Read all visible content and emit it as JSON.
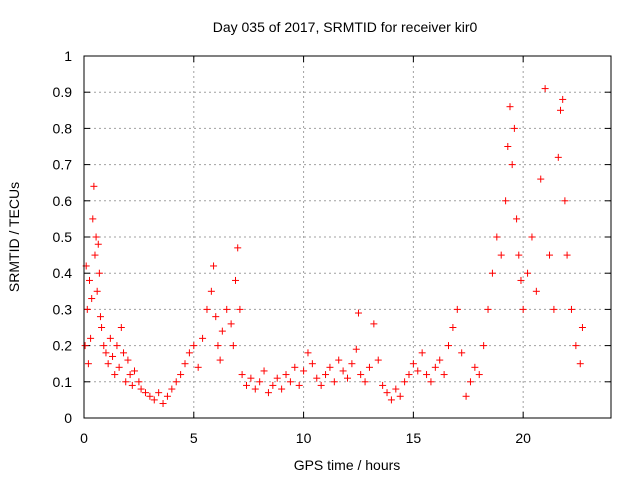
{
  "chart_data": {
    "type": "scatter",
    "title": "Day 035 of 2017, SRMTID for receiver kir0",
    "xlabel": "GPS time / hours",
    "ylabel": "SRMTID / TECUs",
    "xlim": [
      0,
      24
    ],
    "ylim": [
      0,
      1
    ],
    "xticks": [
      0,
      5,
      10,
      15,
      20
    ],
    "xtick_labels": [
      "0",
      "5",
      "10",
      "15",
      "20"
    ],
    "yticks": [
      0,
      0.1,
      0.2,
      0.3,
      0.4,
      0.5,
      0.6,
      0.7,
      0.8,
      0.9,
      1
    ],
    "ytick_labels": [
      "0",
      "0.1",
      "0.2",
      "0.3",
      "0.4",
      "0.5",
      "0.6",
      "0.7",
      "0.8",
      "0.9",
      "1"
    ],
    "grid": true,
    "marker": "+",
    "color": "#ff0000",
    "series": [
      {
        "name": "SRMTID",
        "points": [
          [
            0.05,
            0.2
          ],
          [
            0.1,
            0.42
          ],
          [
            0.15,
            0.3
          ],
          [
            0.2,
            0.15
          ],
          [
            0.25,
            0.38
          ],
          [
            0.3,
            0.22
          ],
          [
            0.35,
            0.33
          ],
          [
            0.4,
            0.55
          ],
          [
            0.45,
            0.64
          ],
          [
            0.5,
            0.45
          ],
          [
            0.55,
            0.5
          ],
          [
            0.6,
            0.35
          ],
          [
            0.65,
            0.48
          ],
          [
            0.7,
            0.4
          ],
          [
            0.75,
            0.28
          ],
          [
            0.8,
            0.25
          ],
          [
            0.9,
            0.2
          ],
          [
            1.0,
            0.18
          ],
          [
            1.1,
            0.15
          ],
          [
            1.2,
            0.22
          ],
          [
            1.3,
            0.17
          ],
          [
            1.4,
            0.12
          ],
          [
            1.5,
            0.2
          ],
          [
            1.6,
            0.14
          ],
          [
            1.7,
            0.25
          ],
          [
            1.8,
            0.18
          ],
          [
            1.9,
            0.1
          ],
          [
            2.0,
            0.16
          ],
          [
            2.1,
            0.12
          ],
          [
            2.2,
            0.09
          ],
          [
            2.3,
            0.13
          ],
          [
            2.5,
            0.1
          ],
          [
            2.6,
            0.08
          ],
          [
            2.8,
            0.07
          ],
          [
            3.0,
            0.06
          ],
          [
            3.2,
            0.05
          ],
          [
            3.4,
            0.07
          ],
          [
            3.6,
            0.04
          ],
          [
            3.8,
            0.06
          ],
          [
            4.0,
            0.08
          ],
          [
            4.2,
            0.1
          ],
          [
            4.4,
            0.12
          ],
          [
            4.6,
            0.15
          ],
          [
            4.8,
            0.18
          ],
          [
            5.0,
            0.2
          ],
          [
            5.2,
            0.14
          ],
          [
            5.4,
            0.22
          ],
          [
            5.6,
            0.3
          ],
          [
            5.8,
            0.35
          ],
          [
            5.9,
            0.42
          ],
          [
            6.0,
            0.28
          ],
          [
            6.1,
            0.2
          ],
          [
            6.2,
            0.16
          ],
          [
            6.3,
            0.24
          ],
          [
            6.5,
            0.3
          ],
          [
            6.7,
            0.26
          ],
          [
            6.8,
            0.2
          ],
          [
            6.9,
            0.38
          ],
          [
            7.0,
            0.47
          ],
          [
            7.1,
            0.3
          ],
          [
            7.2,
            0.12
          ],
          [
            7.4,
            0.09
          ],
          [
            7.6,
            0.11
          ],
          [
            7.8,
            0.08
          ],
          [
            8.0,
            0.1
          ],
          [
            8.2,
            0.13
          ],
          [
            8.4,
            0.07
          ],
          [
            8.6,
            0.09
          ],
          [
            8.8,
            0.11
          ],
          [
            9.0,
            0.08
          ],
          [
            9.2,
            0.12
          ],
          [
            9.4,
            0.1
          ],
          [
            9.6,
            0.14
          ],
          [
            9.8,
            0.09
          ],
          [
            10.0,
            0.13
          ],
          [
            10.2,
            0.18
          ],
          [
            10.4,
            0.15
          ],
          [
            10.6,
            0.11
          ],
          [
            10.8,
            0.09
          ],
          [
            11.0,
            0.12
          ],
          [
            11.2,
            0.14
          ],
          [
            11.4,
            0.1
          ],
          [
            11.6,
            0.16
          ],
          [
            11.8,
            0.13
          ],
          [
            12.0,
            0.11
          ],
          [
            12.2,
            0.15
          ],
          [
            12.4,
            0.19
          ],
          [
            12.5,
            0.29
          ],
          [
            12.6,
            0.12
          ],
          [
            12.8,
            0.1
          ],
          [
            13.0,
            0.14
          ],
          [
            13.2,
            0.26
          ],
          [
            13.4,
            0.16
          ],
          [
            13.6,
            0.09
          ],
          [
            13.8,
            0.07
          ],
          [
            14.0,
            0.05
          ],
          [
            14.2,
            0.08
          ],
          [
            14.4,
            0.06
          ],
          [
            14.6,
            0.1
          ],
          [
            14.8,
            0.12
          ],
          [
            15.0,
            0.15
          ],
          [
            15.2,
            0.13
          ],
          [
            15.4,
            0.18
          ],
          [
            15.6,
            0.12
          ],
          [
            15.8,
            0.1
          ],
          [
            16.0,
            0.14
          ],
          [
            16.2,
            0.16
          ],
          [
            16.4,
            0.12
          ],
          [
            16.6,
            0.2
          ],
          [
            16.8,
            0.25
          ],
          [
            17.0,
            0.3
          ],
          [
            17.2,
            0.18
          ],
          [
            17.4,
            0.06
          ],
          [
            17.6,
            0.1
          ],
          [
            17.8,
            0.14
          ],
          [
            18.0,
            0.12
          ],
          [
            18.2,
            0.2
          ],
          [
            18.4,
            0.3
          ],
          [
            18.6,
            0.4
          ],
          [
            18.8,
            0.5
          ],
          [
            19.0,
            0.45
          ],
          [
            19.2,
            0.6
          ],
          [
            19.3,
            0.75
          ],
          [
            19.4,
            0.86
          ],
          [
            19.5,
            0.7
          ],
          [
            19.6,
            0.8
          ],
          [
            19.7,
            0.55
          ],
          [
            19.8,
            0.45
          ],
          [
            19.9,
            0.38
          ],
          [
            20.0,
            0.3
          ],
          [
            20.2,
            0.4
          ],
          [
            20.4,
            0.5
          ],
          [
            20.6,
            0.35
          ],
          [
            20.8,
            0.66
          ],
          [
            21.0,
            0.91
          ],
          [
            21.2,
            0.45
          ],
          [
            21.4,
            0.3
          ],
          [
            21.6,
            0.72
          ],
          [
            21.7,
            0.85
          ],
          [
            21.8,
            0.88
          ],
          [
            21.9,
            0.6
          ],
          [
            22.0,
            0.45
          ],
          [
            22.2,
            0.3
          ],
          [
            22.4,
            0.2
          ],
          [
            22.6,
            0.15
          ],
          [
            22.7,
            0.25
          ]
        ]
      }
    ]
  }
}
